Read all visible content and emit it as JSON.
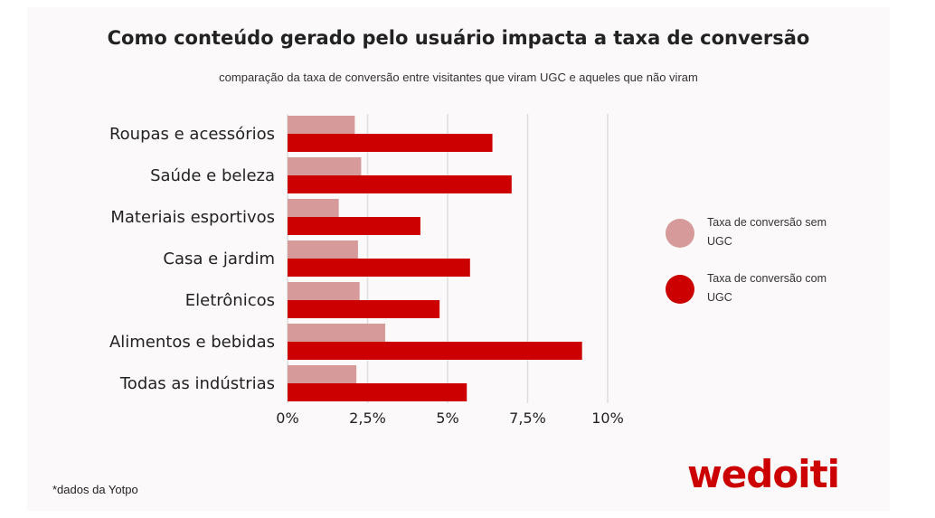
{
  "chart_data": {
    "type": "bar",
    "orientation": "horizontal",
    "title": "Como conteúdo gerado pelo usuário impacta a taxa de conversão",
    "subtitle": "comparação da taxa de conversão entre visitantes que viram UGC e aqueles que não viram",
    "categories": [
      "Roupas e acessórios",
      "Saúde e beleza",
      "Materiais esportivos",
      "Casa e jardim",
      "Eletrônicos",
      "Alimentos e bebidas",
      "Todas as indústrias"
    ],
    "series": [
      {
        "name": "Taxa de conversão sem UGC",
        "color": "#d59a99",
        "values": [
          2.1,
          2.3,
          1.6,
          2.2,
          2.25,
          3.05,
          2.15
        ]
      },
      {
        "name": "Taxa de conversão com UGC",
        "color": "#cc0000",
        "values": [
          6.4,
          7.0,
          4.15,
          5.7,
          4.75,
          9.2,
          5.6
        ]
      }
    ],
    "xlim": [
      0,
      10
    ],
    "xticks": [
      0,
      2.5,
      5,
      7.5,
      10
    ],
    "xtick_labels": [
      "0%",
      "2,5%",
      "5%",
      "7,5%",
      "10%"
    ],
    "grid": "vertical",
    "legend_position": "right"
  },
  "footnote": "*dados da Yotpo",
  "brand": "wedoiti",
  "colors": {
    "background": "#fbf9f9",
    "grid": "#dedede",
    "brand": "#cc0000"
  }
}
